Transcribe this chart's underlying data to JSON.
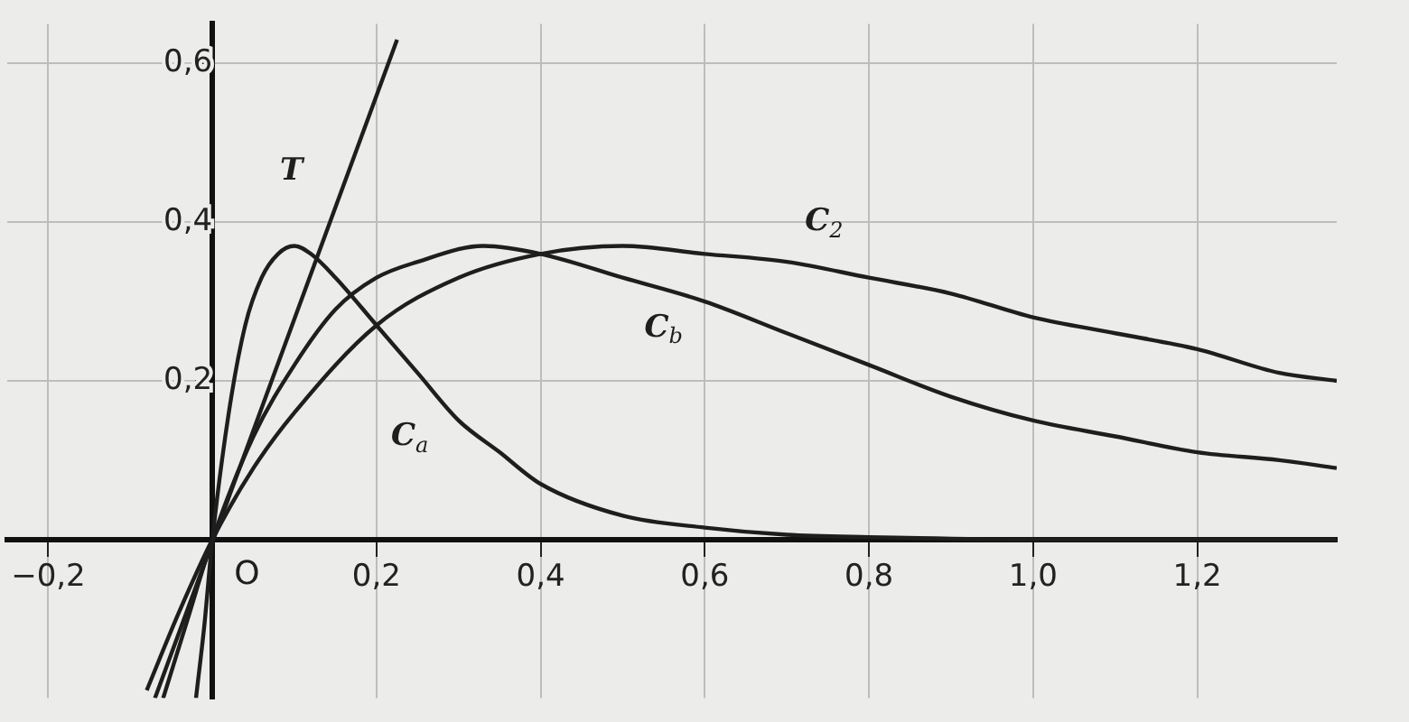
{
  "chart_data": {
    "type": "line",
    "xlim": [
      -0.25,
      1.37
    ],
    "ylim": [
      -0.2,
      0.65
    ],
    "xticks": [
      {
        "value": -0.2,
        "label": "−0,2"
      },
      {
        "value": 0,
        "label": null
      },
      {
        "value": 0.2,
        "label": "0,2"
      },
      {
        "value": 0.4,
        "label": "0,4"
      },
      {
        "value": 0.6,
        "label": "0,6"
      },
      {
        "value": 0.8,
        "label": "0,8"
      },
      {
        "value": 1,
        "label": "1,0"
      },
      {
        "value": 1.2,
        "label": "1,2"
      }
    ],
    "yticks": [
      {
        "value": 0.2,
        "label": "0,2"
      },
      {
        "value": 0.4,
        "label": "0,4"
      },
      {
        "value": 0.6,
        "label": "0,6"
      }
    ],
    "grid": true,
    "legend": false,
    "marker": "none",
    "line_style": "solid",
    "annotations": [
      {
        "text": "O",
        "x": 0,
        "y": 0
      }
    ],
    "series": [
      {
        "name": "T",
        "color": "#1e1e1e",
        "x": [
          -0.07,
          0.225
        ],
        "values": [
          -0.2,
          0.63
        ]
      },
      {
        "name": "C$_{a}$",
        "color": "#1e1e1e",
        "x": [
          -0.02,
          -0.01,
          0,
          0.02,
          0.04,
          0.06,
          0.08,
          0.1,
          0.12,
          0.15,
          0.2,
          0.25,
          0.3,
          0.35,
          0.4,
          0.5,
          0.6,
          0.7,
          0.8,
          1.0,
          1.2,
          1.37
        ],
        "values": [
          -0.2,
          -0.11,
          0,
          0.16,
          0.27,
          0.33,
          0.36,
          0.37,
          0.36,
          0.33,
          0.27,
          0.21,
          0.15,
          0.11,
          0.07,
          0.03,
          0.015,
          0.006,
          0.003,
          0,
          0,
          0
        ]
      },
      {
        "name": "C$_{b}$",
        "color": "#1e1e1e",
        "x": [
          -0.06,
          -0.03,
          0,
          0.05,
          0.1,
          0.15,
          0.2,
          0.25,
          0.33,
          0.4,
          0.5,
          0.6,
          0.7,
          0.8,
          0.9,
          1.0,
          1.1,
          1.2,
          1.3,
          1.37
        ],
        "values": [
          -0.2,
          -0.1,
          0,
          0.13,
          0.22,
          0.29,
          0.33,
          0.35,
          0.37,
          0.36,
          0.33,
          0.3,
          0.26,
          0.22,
          0.18,
          0.15,
          0.13,
          0.11,
          0.1,
          0.09
        ]
      },
      {
        "name": "C$_{2}$",
        "color": "#1e1e1e",
        "x": [
          -0.08,
          -0.04,
          0,
          0.05,
          0.1,
          0.2,
          0.3,
          0.4,
          0.5,
          0.6,
          0.7,
          0.8,
          0.9,
          1.0,
          1.1,
          1.2,
          1.3,
          1.37
        ],
        "values": [
          -0.19,
          -0.09,
          0,
          0.09,
          0.16,
          0.27,
          0.33,
          0.36,
          0.37,
          0.36,
          0.35,
          0.33,
          0.31,
          0.28,
          0.26,
          0.24,
          0.21,
          0.2
        ]
      }
    ]
  }
}
